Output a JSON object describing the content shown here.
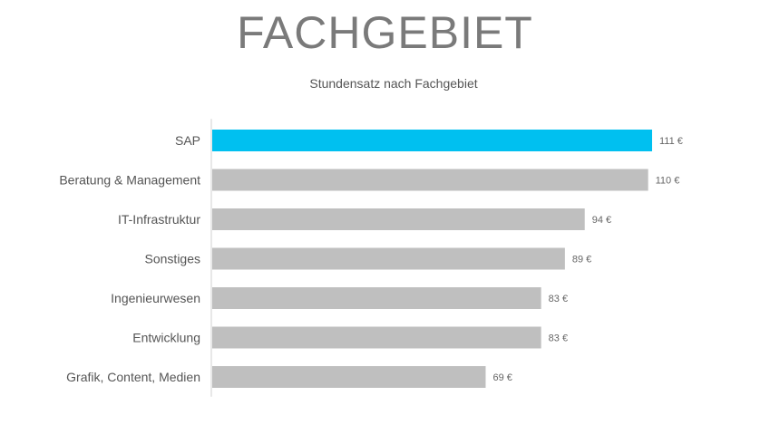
{
  "page": {
    "title": "FACHGEBIET"
  },
  "chart_data": {
    "type": "bar",
    "orientation": "horizontal",
    "title": "Stundensatz nach Fachgebiet",
    "xlabel": "",
    "ylabel": "",
    "categories": [
      "SAP",
      "Beratung & Management",
      "IT-Infrastruktur",
      "Sonstiges",
      "Ingenieurwesen",
      "Entwicklung",
      "Grafik, Content, Medien"
    ],
    "values": [
      111,
      110,
      94,
      89,
      83,
      83,
      69
    ],
    "value_labels": [
      "111 €",
      "110 €",
      "94 €",
      "89 €",
      "83 €",
      "83 €",
      "69 €"
    ],
    "xlim": [
      0,
      111
    ],
    "grid": false,
    "legend": "none",
    "highlight_index": 0,
    "colors": {
      "highlight": "#00c0f0",
      "default": "#bfbfbf",
      "axis": "#d0d0d0",
      "category_text": "#555555",
      "value_text": "#666666"
    }
  }
}
